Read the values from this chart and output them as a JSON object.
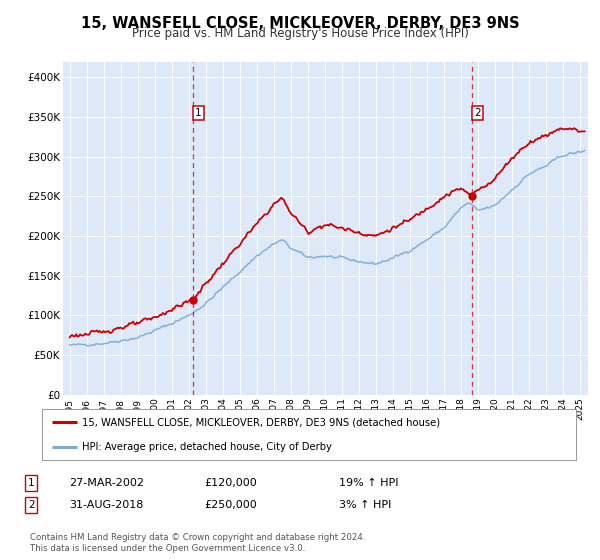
{
  "title": "15, WANSFELL CLOSE, MICKLEOVER, DERBY, DE3 9NS",
  "subtitle": "Price paid vs. HM Land Registry's House Price Index (HPI)",
  "ylim": [
    0,
    420000
  ],
  "yticks": [
    0,
    50000,
    100000,
    150000,
    200000,
    250000,
    300000,
    350000,
    400000
  ],
  "ytick_labels": [
    "£0",
    "£50K",
    "£100K",
    "£150K",
    "£200K",
    "£250K",
    "£300K",
    "£350K",
    "£400K"
  ],
  "xlim_start": 1994.6,
  "xlim_end": 2025.5,
  "figure_bg": "#ffffff",
  "plot_bg_color": "#dde8f8",
  "grid_color": "#ffffff",
  "red_line_color": "#cc0000",
  "blue_line_color": "#7baad4",
  "marker1_date": 2002.24,
  "marker1_value": 120000,
  "marker2_date": 2018.67,
  "marker2_value": 250000,
  "vline1_x": 2002.24,
  "vline2_x": 2018.67,
  "legend_line1": "15, WANSFELL CLOSE, MICKLEOVER, DERBY, DE3 9NS (detached house)",
  "legend_line2": "HPI: Average price, detached house, City of Derby",
  "table_row1_num": "1",
  "table_row1_date": "27-MAR-2002",
  "table_row1_price": "£120,000",
  "table_row1_hpi": "19% ↑ HPI",
  "table_row2_num": "2",
  "table_row2_date": "31-AUG-2018",
  "table_row2_price": "£250,000",
  "table_row2_hpi": "3% ↑ HPI",
  "footer": "Contains HM Land Registry data © Crown copyright and database right 2024.\nThis data is licensed under the Open Government Licence v3.0.",
  "title_fontsize": 10.5,
  "subtitle_fontsize": 8.5
}
